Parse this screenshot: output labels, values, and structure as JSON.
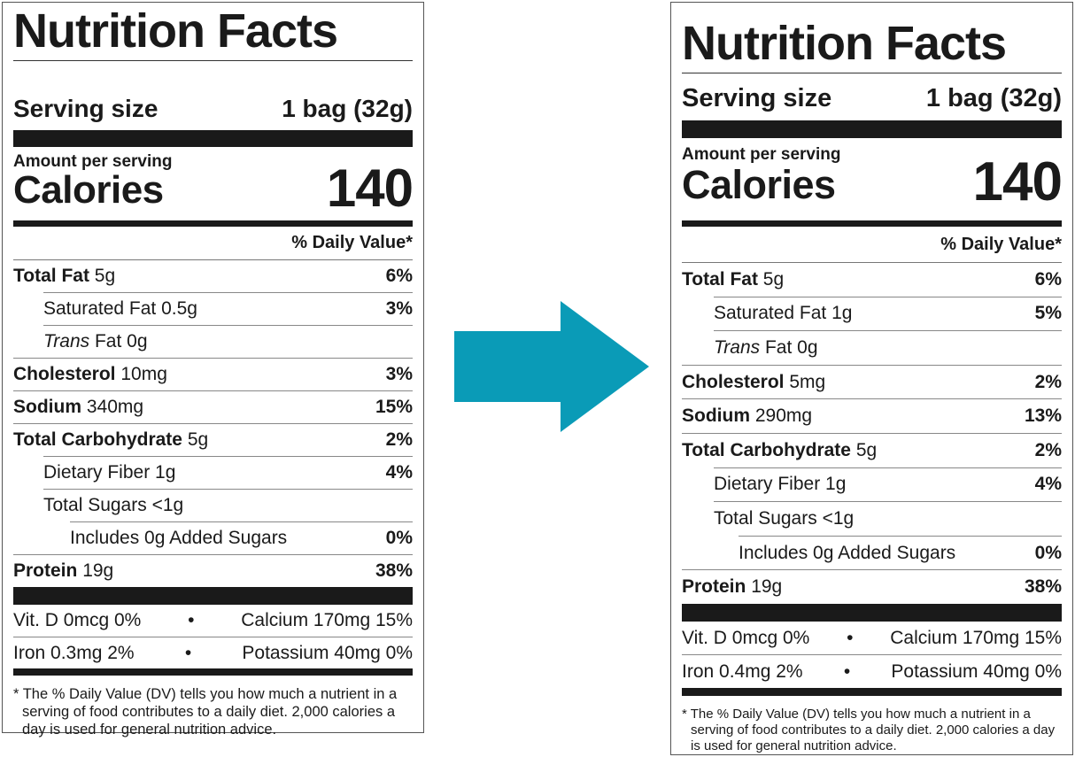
{
  "arrow": {
    "icon": "right-arrow-icon",
    "color": "#0a9bb7"
  },
  "labels": [
    {
      "title": "Nutrition Facts",
      "serving_label": "Serving size",
      "serving_value": "1 bag (32g)",
      "amount_per_serving": "Amount per serving",
      "calories_label": "Calories",
      "calories_value": "140",
      "dv_header": "% Daily Value*",
      "rows": [
        {
          "name": "Total Fat",
          "amount": "5g",
          "dv": "6%",
          "bold": true,
          "indent": 0
        },
        {
          "name": "Saturated Fat",
          "amount": "0.5g",
          "dv": "3%",
          "bold": false,
          "indent": 1
        },
        {
          "italic": "Trans",
          "name": "Fat",
          "amount": "0g",
          "dv": "",
          "bold": false,
          "indent": 1
        },
        {
          "name": "Cholesterol",
          "amount": "10mg",
          "dv": "3%",
          "bold": true,
          "indent": 0
        },
        {
          "name": "Sodium",
          "amount": "340mg",
          "dv": "15%",
          "bold": true,
          "indent": 0
        },
        {
          "name": "Total Carbohydrate",
          "amount": "5g",
          "dv": "2%",
          "bold": true,
          "indent": 0
        },
        {
          "name": "Dietary Fiber",
          "amount": "1g",
          "dv": "4%",
          "bold": false,
          "indent": 1
        },
        {
          "name": "Total Sugars",
          "amount": "<1g",
          "dv": "",
          "bold": false,
          "indent": 1
        },
        {
          "name": "Includes 0g Added Sugars",
          "amount": "",
          "dv": "0%",
          "bold": false,
          "indent": 2
        },
        {
          "name": "Protein",
          "amount": "19g",
          "dv": "38%",
          "bold": true,
          "indent": 0
        }
      ],
      "vitamins": [
        {
          "left": "Vit. D 0mcg 0%",
          "right": "Calcium 170mg 15%"
        },
        {
          "left": "Iron 0.3mg 2%",
          "right": "Potassium 40mg 0%"
        }
      ],
      "bullet": "•",
      "footnote": "* The % Daily Value (DV) tells you how much a nutrient in a serving of food contributes to a daily diet. 2,000 calories a day is used for general nutrition advice."
    },
    {
      "title": "Nutrition Facts",
      "serving_label": "Serving size",
      "serving_value": "1 bag (32g)",
      "amount_per_serving": "Amount per serving",
      "calories_label": "Calories",
      "calories_value": "140",
      "dv_header": "% Daily Value*",
      "rows": [
        {
          "name": "Total Fat",
          "amount": "5g",
          "dv": "6%",
          "bold": true,
          "indent": 0
        },
        {
          "name": "Saturated Fat",
          "amount": "1g",
          "dv": "5%",
          "bold": false,
          "indent": 1
        },
        {
          "italic": "Trans",
          "name": "Fat",
          "amount": "0g",
          "dv": "",
          "bold": false,
          "indent": 1
        },
        {
          "name": "Cholesterol",
          "amount": "5mg",
          "dv": "2%",
          "bold": true,
          "indent": 0
        },
        {
          "name": "Sodium",
          "amount": "290mg",
          "dv": "13%",
          "bold": true,
          "indent": 0
        },
        {
          "name": "Total Carbohydrate",
          "amount": "5g",
          "dv": "2%",
          "bold": true,
          "indent": 0
        },
        {
          "name": "Dietary Fiber",
          "amount": "1g",
          "dv": "4%",
          "bold": false,
          "indent": 1
        },
        {
          "name": "Total Sugars",
          "amount": "<1g",
          "dv": "",
          "bold": false,
          "indent": 1
        },
        {
          "name": "Includes 0g Added Sugars",
          "amount": "",
          "dv": "0%",
          "bold": false,
          "indent": 2
        },
        {
          "name": "Protein",
          "amount": "19g",
          "dv": "38%",
          "bold": true,
          "indent": 0
        }
      ],
      "vitamins": [
        {
          "left": "Vit. D 0mcg 0%",
          "right": "Calcium 170mg 15%"
        },
        {
          "left": "Iron 0.4mg 2%",
          "right": "Potassium 40mg 0%"
        }
      ],
      "bullet": "•",
      "footnote": "* The % Daily Value (DV) tells you how much a nutrient in a serving of food contributes to a daily diet. 2,000 calories a day is used for general nutrition advice."
    }
  ]
}
